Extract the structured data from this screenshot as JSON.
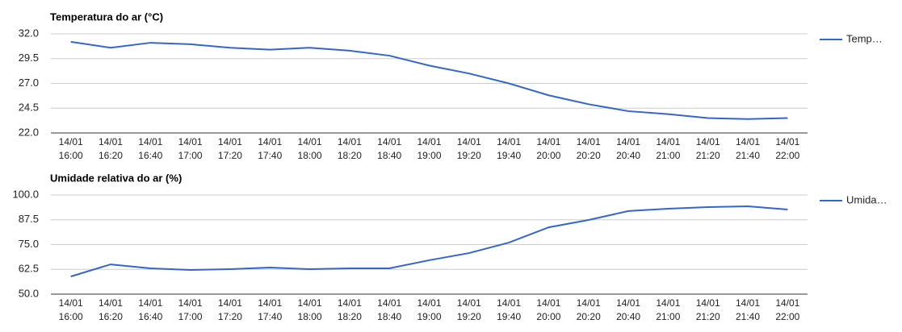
{
  "chart_data": [
    {
      "type": "line",
      "title": "Temperatura do ar (°C)",
      "categories": [
        "14/01 16:00",
        "14/01 16:20",
        "14/01 16:40",
        "14/01 17:00",
        "14/01 17:20",
        "14/01 17:40",
        "14/01 18:00",
        "14/01 18:20",
        "14/01 18:40",
        "14/01 19:00",
        "14/01 19:20",
        "14/01 19:40",
        "14/01 20:00",
        "14/01 20:20",
        "14/01 20:40",
        "14/01 21:00",
        "14/01 21:20",
        "14/01 21:40",
        "14/01 22:00"
      ],
      "series": [
        {
          "name": "Temp…",
          "color": "#3366cc",
          "values": [
            31.2,
            30.6,
            31.1,
            30.95,
            30.6,
            30.4,
            30.6,
            30.3,
            29.8,
            28.8,
            28.0,
            27.0,
            25.8,
            24.9,
            24.2,
            23.9,
            23.5,
            23.4,
            23.5
          ]
        }
      ],
      "ylim": [
        22,
        32
      ],
      "yticks": [
        {
          "value": 22,
          "label": "22.0"
        },
        24.5,
        {
          "value": 27,
          "label": "27.0"
        },
        29.5,
        {
          "value": 32,
          "label": "32.0"
        }
      ],
      "grid": true,
      "legend": "right"
    },
    {
      "type": "line",
      "title": "Umidade relativa do ar (%)",
      "categories": [
        "14/01 16:00",
        "14/01 16:20",
        "14/01 16:40",
        "14/01 17:00",
        "14/01 17:20",
        "14/01 17:40",
        "14/01 18:00",
        "14/01 18:20",
        "14/01 18:40",
        "14/01 19:00",
        "14/01 19:20",
        "14/01 19:40",
        "14/01 20:00",
        "14/01 20:20",
        "14/01 20:40",
        "14/01 21:00",
        "14/01 21:20",
        "14/01 21:40",
        "14/01 22:00"
      ],
      "series": [
        {
          "name": "Umida…",
          "color": "#3366cc",
          "values": [
            58.9,
            65.0,
            63.0,
            62.2,
            62.6,
            63.4,
            62.6,
            63.0,
            63.0,
            67.1,
            70.7,
            76.0,
            83.7,
            87.4,
            91.9,
            93.1,
            93.9,
            94.3,
            92.7
          ]
        }
      ],
      "ylim": [
        50,
        100
      ],
      "yticks": [
        {
          "value": 50,
          "label": "50.0"
        },
        62.5,
        {
          "value": 75,
          "label": "75.0"
        },
        87.5,
        {
          "value": 100,
          "label": "100.0"
        }
      ],
      "grid": true,
      "legend": "right"
    }
  ]
}
